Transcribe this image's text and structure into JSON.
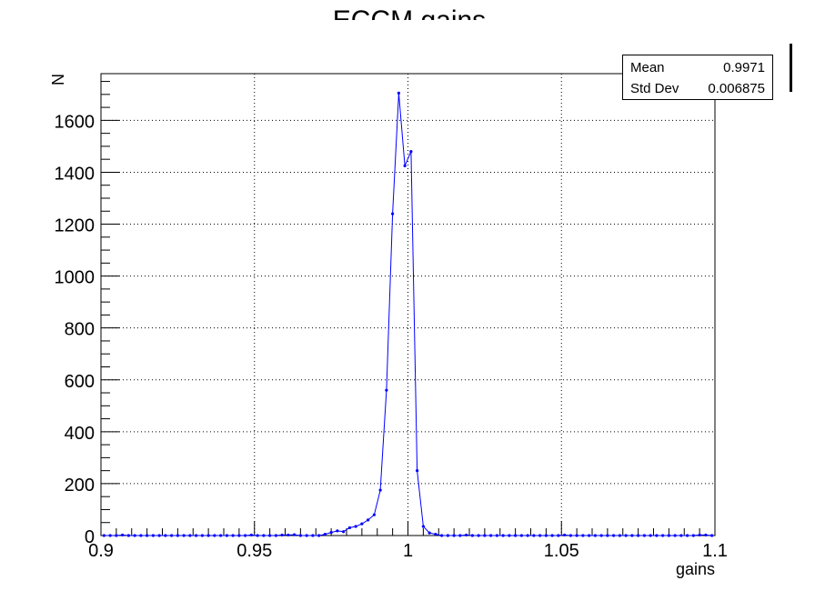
{
  "title": "ECCM gains",
  "stats": {
    "rows": [
      {
        "label": "Mean",
        "value": "0.9971"
      },
      {
        "label": "Std Dev",
        "value": "0.006875"
      }
    ]
  },
  "chart_data": {
    "type": "line",
    "title": "ECCM gains",
    "xlabel": "gains",
    "ylabel": "N",
    "xlim": [
      0.9,
      1.1
    ],
    "ylim": [
      0,
      1780
    ],
    "grid": true,
    "legend": "top-right stats box",
    "color": "#0000ff",
    "xticks": [
      0.9,
      0.95,
      1.0,
      1.05,
      1.1
    ],
    "xtick_labels": [
      "0.9",
      "0.95",
      "1",
      "1.05",
      "1.1"
    ],
    "yticks": [
      0,
      200,
      400,
      600,
      800,
      1000,
      1200,
      1400,
      1600
    ],
    "ytick_labels": [
      "0",
      "200",
      "400",
      "600",
      "800",
      "1000",
      "1200",
      "1400",
      "1600"
    ],
    "series": [
      {
        "x": [
          0.901,
          0.903,
          0.905,
          0.907,
          0.909,
          0.911,
          0.913,
          0.915,
          0.917,
          0.919,
          0.921,
          0.923,
          0.925,
          0.927,
          0.929,
          0.931,
          0.933,
          0.935,
          0.937,
          0.939,
          0.941,
          0.943,
          0.945,
          0.947,
          0.949,
          0.951,
          0.953,
          0.955,
          0.957,
          0.959,
          0.961,
          0.963,
          0.965,
          0.967,
          0.969,
          0.971,
          0.973,
          0.975,
          0.977,
          0.979,
          0.981,
          0.983,
          0.985,
          0.987,
          0.989,
          0.991,
          0.993,
          0.995,
          0.997,
          0.999,
          1.001,
          1.003,
          1.005,
          1.007,
          1.009,
          1.011,
          1.013,
          1.015,
          1.017,
          1.019,
          1.021,
          1.023,
          1.025,
          1.027,
          1.029,
          1.031,
          1.033,
          1.035,
          1.037,
          1.039,
          1.041,
          1.043,
          1.045,
          1.047,
          1.049,
          1.051,
          1.053,
          1.055,
          1.057,
          1.059,
          1.061,
          1.063,
          1.065,
          1.067,
          1.069,
          1.071,
          1.073,
          1.075,
          1.077,
          1.079,
          1.081,
          1.083,
          1.085,
          1.087,
          1.089,
          1.091,
          1.093,
          1.095,
          1.097,
          1.099
        ],
        "y": [
          0,
          0,
          0,
          2,
          0,
          0,
          0,
          0,
          0,
          0,
          0,
          0,
          0,
          0,
          0,
          0,
          0,
          0,
          0,
          0,
          0,
          0,
          0,
          0,
          2,
          0,
          0,
          0,
          0,
          2,
          2,
          3,
          0,
          0,
          0,
          0,
          5,
          12,
          18,
          15,
          30,
          35,
          45,
          60,
          80,
          175,
          560,
          1240,
          1705,
          1425,
          1480,
          250,
          35,
          10,
          5,
          0,
          0,
          0,
          0,
          2,
          0,
          0,
          0,
          0,
          0,
          0,
          0,
          0,
          0,
          0,
          0,
          0,
          0,
          0,
          0,
          2,
          0,
          0,
          0,
          0,
          0,
          0,
          0,
          0,
          0,
          0,
          0,
          0,
          0,
          0,
          0,
          0,
          0,
          0,
          0,
          0,
          0,
          2,
          2,
          0
        ]
      }
    ]
  }
}
